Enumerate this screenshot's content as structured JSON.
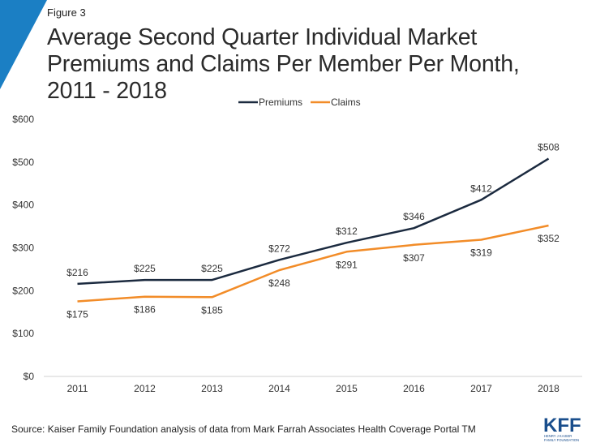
{
  "figure_label": "Figure 3",
  "source": "Source: Kaiser Family Foundation analysis of data from Mark Farrah Associates Health Coverage Portal TM",
  "logo": {
    "letters": "KFF",
    "sub_line1": "HENRY J KAISER",
    "sub_line2": "FAMILY FOUNDATION"
  },
  "colors": {
    "accent": "#1b7fc4",
    "premiums": "#1b2a3f",
    "claims": "#f28c28",
    "axis": "#d0d0d0"
  },
  "chart_data": {
    "type": "line",
    "title": "Average Second Quarter Individual Market Premiums and Claims Per Member Per Month, 2011 - 2018",
    "xlabel": "",
    "ylabel": "",
    "categories": [
      "2011",
      "2012",
      "2013",
      "2014",
      "2015",
      "2016",
      "2017",
      "2018"
    ],
    "ylim": [
      0,
      600
    ],
    "yticks": [
      0,
      100,
      200,
      300,
      400,
      500,
      600
    ],
    "yticklabels": [
      "$0",
      "$100",
      "$200",
      "$300",
      "$400",
      "$500",
      "$600"
    ],
    "grid": false,
    "legend_position": "top",
    "series": [
      {
        "name": "Premiums",
        "values": [
          216,
          225,
          225,
          272,
          312,
          346,
          412,
          508
        ],
        "labels": [
          "$216",
          "$225",
          "$225",
          "$272",
          "$312",
          "$346",
          "$412",
          "$508"
        ],
        "label_side": "above"
      },
      {
        "name": "Claims",
        "values": [
          175,
          186,
          185,
          248,
          291,
          307,
          319,
          352
        ],
        "labels": [
          "$175",
          "$186",
          "$185",
          "$248",
          "$291",
          "$307",
          "$319",
          "$352"
        ],
        "label_side": "below"
      }
    ]
  }
}
